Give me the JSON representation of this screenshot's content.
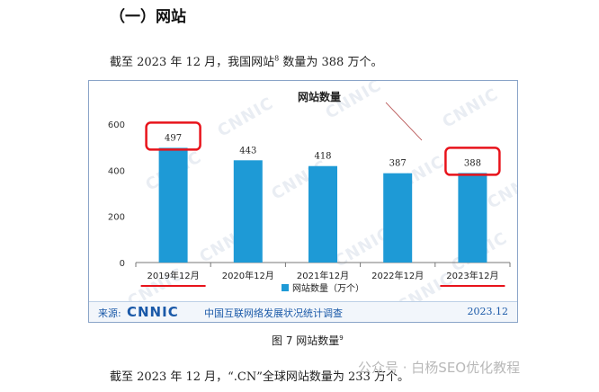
{
  "heading": "（一）网站",
  "para1": {
    "text": "截至 2023 年 12 月，我国网站",
    "sup": "8",
    "text_after": " 数量为 388 万个。"
  },
  "figure": {
    "watermark": "CNNIC",
    "source_label": "来源:",
    "logo_text": "CNNIC",
    "survey_name": "中国互联网络发展状况统计调查",
    "date": "2023.12"
  },
  "chart_data": {
    "type": "bar",
    "title": "网站数量",
    "categories": [
      "2019年12月",
      "2020年12月",
      "2021年12月",
      "2022年12月",
      "2023年12月"
    ],
    "values": [
      497,
      443,
      418,
      387,
      388
    ],
    "series": [
      {
        "name": "网站数量（万个）",
        "values": [
          497,
          443,
          418,
          387,
          388
        ]
      }
    ],
    "ylim": [
      0,
      600
    ],
    "yticks": [
      0,
      200,
      400,
      600
    ],
    "legend": "bottom",
    "bar_color": "#1e9ad6",
    "highlight_color": "#e8131b",
    "highlighted": [
      "2019年12月",
      "2023年12月"
    ]
  },
  "caption": {
    "text": "图 7  网站数量",
    "sup": "9"
  },
  "para2": "截至 2023 年 12 月，“.CN”全球网站数量为 233 万个。",
  "overlay_watermark": "公众号 · 白杨SEO优化教程"
}
